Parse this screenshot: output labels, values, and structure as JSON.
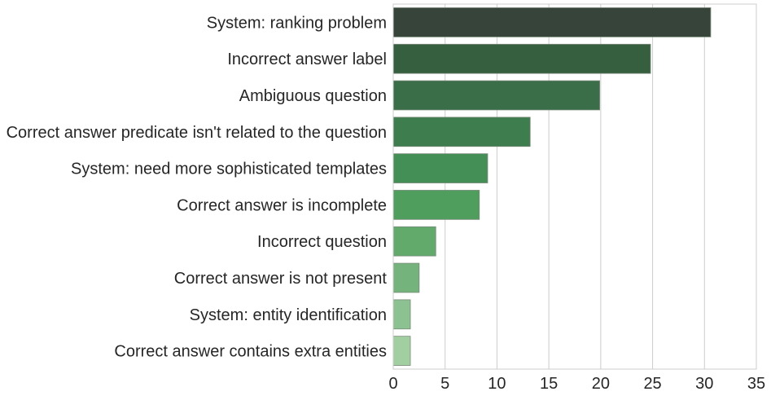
{
  "chart_data": {
    "type": "bar",
    "orientation": "horizontal",
    "title": "",
    "xlabel": "",
    "ylabel": "",
    "categories": [
      "System: ranking problem",
      "Incorrect answer label",
      "Ambiguous question",
      "Correct answer predicate isn't related to the question",
      "System: need more sophisticated templates",
      "Correct answer is incomplete",
      "Incorrect question",
      "Correct answer is not present",
      "System: entity identification",
      "Correct answer contains extra entities"
    ],
    "values": [
      30.6,
      24.8,
      19.9,
      13.2,
      9.1,
      8.3,
      4.1,
      2.5,
      1.65,
      1.65
    ],
    "xlim": [
      0,
      35
    ],
    "xticks": [
      0,
      5,
      10,
      15,
      20,
      25,
      30,
      35
    ],
    "grid": "vertical",
    "colors": [
      "#36443a",
      "#355f3f",
      "#3a6e48",
      "#3d7d4e",
      "#448f56",
      "#4f9e5e",
      "#62aa6c",
      "#74b37b",
      "#8cc191",
      "#a2cfa2"
    ]
  }
}
